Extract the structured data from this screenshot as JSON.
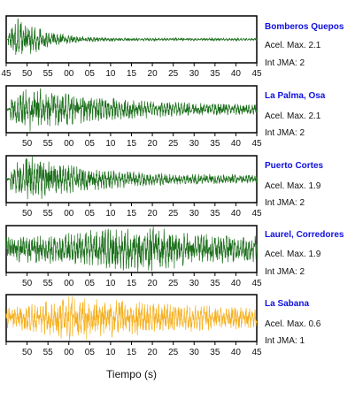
{
  "chart_data": {
    "type": "line",
    "xlabel": "Tiempo (s)",
    "x_tick_labels_full": [
      "45",
      "50",
      "55",
      "00",
      "05",
      "10",
      "15",
      "20",
      "25",
      "30",
      "35",
      "40",
      "45"
    ],
    "x_tick_labels_short": [
      "50",
      "55",
      "00",
      "05",
      "10",
      "15",
      "20",
      "25",
      "30",
      "35",
      "40",
      "45"
    ],
    "xlim_seconds": [
      0,
      60
    ],
    "grid": false,
    "stations": [
      {
        "name": "Bomberos Quepos",
        "acel_max": "Acel. Max. 2.1",
        "int_jma": "Int JMA: 2",
        "color": "#1a6e1a",
        "onset_s": 0.5,
        "peak_s": 3,
        "decay": 0.16,
        "coda_level": 0.06,
        "amplitude": 0.95
      },
      {
        "name": "La Palma, Osa",
        "acel_max": "Acel. Max. 2.1",
        "int_jma": "Int JMA: 2",
        "color": "#1a6e1a",
        "onset_s": 1,
        "peak_s": 6,
        "decay": 0.05,
        "coda_level": 0.18,
        "amplitude": 0.95
      },
      {
        "name": "Puerto Cortes",
        "acel_max": "Acel. Max. 1.9",
        "int_jma": "Int JMA: 2",
        "color": "#1a6e1a",
        "onset_s": 1,
        "peak_s": 5,
        "decay": 0.06,
        "coda_level": 0.14,
        "amplitude": 1.0
      },
      {
        "name": "Laurel, Corredores",
        "acel_max": "Acel. Max. 1.9",
        "int_jma": "Int JMA: 2",
        "color": "#1a6e1a",
        "onset_s": 0,
        "peak_s": 30,
        "decay": 0.0,
        "coda_level": 0.35,
        "amplitude": 0.95
      },
      {
        "name": "La Sabana",
        "acel_max": "Acel. Max. 0.6",
        "int_jma": "Int JMA: 1",
        "color": "#f5b020",
        "onset_s": 0,
        "peak_s": 15,
        "decay": 0.03,
        "coda_level": 0.25,
        "amplitude": 1.0
      }
    ]
  }
}
